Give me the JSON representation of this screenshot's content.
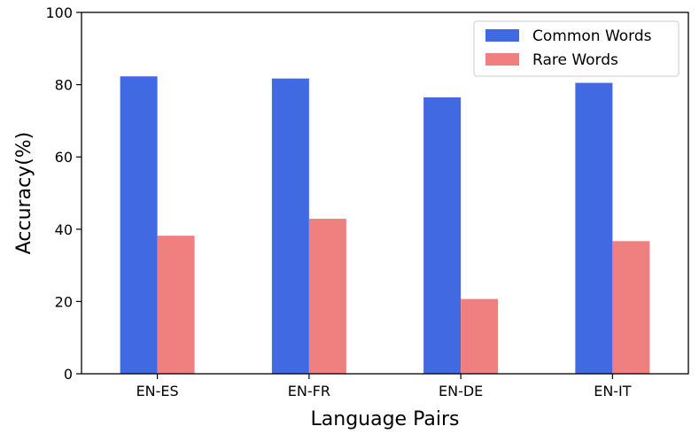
{
  "chart_data": {
    "type": "bar",
    "xlabel": "Language Pairs",
    "ylabel": "Accuracy(%)",
    "ylim": [
      0,
      100
    ],
    "yticks": [
      0,
      20,
      40,
      60,
      80,
      100
    ],
    "categories": [
      "EN-ES",
      "EN-FR",
      "EN-DE",
      "EN-IT"
    ],
    "series": [
      {
        "name": "Common Words",
        "color": "#4169e1",
        "values": [
          82.3,
          81.7,
          76.5,
          80.5
        ]
      },
      {
        "name": "Rare Words",
        "color": "#f08080",
        "values": [
          38.2,
          42.9,
          20.7,
          36.7
        ]
      }
    ],
    "legend_position": "top-right",
    "grid": false
  }
}
